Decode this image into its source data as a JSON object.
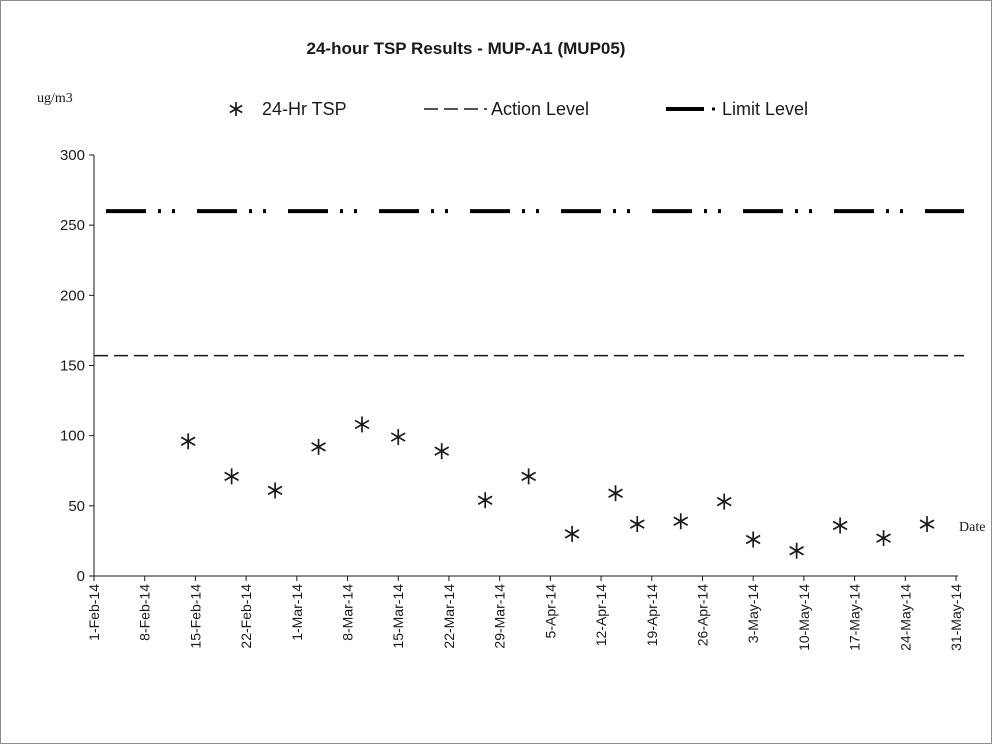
{
  "chart_data": {
    "type": "scatter",
    "title": "24-hour TSP Results - MUP-A1 (MUP05)",
    "ylabel": "ug/m3",
    "xlabel": "Date",
    "ylim": [
      0,
      300
    ],
    "yticks": [
      "0",
      "50",
      "100",
      "150",
      "200",
      "250",
      "300"
    ],
    "xlim": [
      "2014-02-01",
      "2014-05-31"
    ],
    "xticks": [
      {
        "date": "2014-02-01",
        "label": "1-Feb-14"
      },
      {
        "date": "2014-02-08",
        "label": "8-Feb-14"
      },
      {
        "date": "2014-02-15",
        "label": "15-Feb-14"
      },
      {
        "date": "2014-02-22",
        "label": "22-Feb-14"
      },
      {
        "date": "2014-03-01",
        "label": "1-Mar-14"
      },
      {
        "date": "2014-03-08",
        "label": "8-Mar-14"
      },
      {
        "date": "2014-03-15",
        "label": "15-Mar-14"
      },
      {
        "date": "2014-03-22",
        "label": "22-Mar-14"
      },
      {
        "date": "2014-03-29",
        "label": "29-Mar-14"
      },
      {
        "date": "2014-04-05",
        "label": "5-Apr-14"
      },
      {
        "date": "2014-04-12",
        "label": "12-Apr-14"
      },
      {
        "date": "2014-04-19",
        "label": "19-Apr-14"
      },
      {
        "date": "2014-04-26",
        "label": "26-Apr-14"
      },
      {
        "date": "2014-05-03",
        "label": "3-May-14"
      },
      {
        "date": "2014-05-10",
        "label": "10-May-14"
      },
      {
        "date": "2014-05-17",
        "label": "17-May-14"
      },
      {
        "date": "2014-05-24",
        "label": "24-May-14"
      },
      {
        "date": "2014-05-31",
        "label": "31-May-14"
      }
    ],
    "legend_position": "top",
    "grid": false,
    "series": [
      {
        "name": "24-Hr TSP",
        "marker": "asterisk",
        "color": "#1a1a1a",
        "points": [
          {
            "x": "2014-02-14",
            "y": 96
          },
          {
            "x": "2014-02-20",
            "y": 71
          },
          {
            "x": "2014-02-26",
            "y": 61
          },
          {
            "x": "2014-03-04",
            "y": 92
          },
          {
            "x": "2014-03-10",
            "y": 108
          },
          {
            "x": "2014-03-15",
            "y": 99
          },
          {
            "x": "2014-03-21",
            "y": 89
          },
          {
            "x": "2014-03-27",
            "y": 54
          },
          {
            "x": "2014-04-02",
            "y": 71
          },
          {
            "x": "2014-04-08",
            "y": 30
          },
          {
            "x": "2014-04-14",
            "y": 59
          },
          {
            "x": "2014-04-17",
            "y": 37
          },
          {
            "x": "2014-04-23",
            "y": 39
          },
          {
            "x": "2014-04-29",
            "y": 53
          },
          {
            "x": "2014-05-03",
            "y": 26
          },
          {
            "x": "2014-05-09",
            "y": 18
          },
          {
            "x": "2014-05-15",
            "y": 36
          },
          {
            "x": "2014-05-21",
            "y": 27
          },
          {
            "x": "2014-05-27",
            "y": 37
          }
        ]
      },
      {
        "name": "Action Level",
        "style": "dashed",
        "color": "#1a1a1a",
        "constant": 157
      },
      {
        "name": "Limit Level",
        "style": "dash-dot-dot-thick",
        "color": "#000000",
        "constant": 260
      }
    ]
  }
}
